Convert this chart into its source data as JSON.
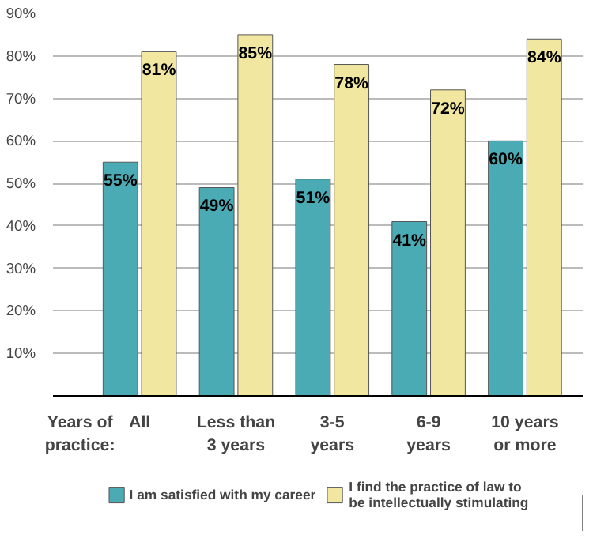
{
  "chart_data": {
    "type": "bar",
    "categories": [
      "All",
      "Less than\n3 years",
      "3-5\nyears",
      "6-9\nyears",
      "10 years\nor more"
    ],
    "series": [
      {
        "name": "I am satisfied with my career",
        "color": "#4aabb5",
        "values": [
          55,
          49,
          51,
          41,
          60
        ],
        "value_labels": [
          "55%",
          "49%",
          "51%",
          "41%",
          "60%"
        ]
      },
      {
        "name": "I find the practice of law to\nbe intellectually stimulating",
        "color": "#f2e7a0",
        "values": [
          81,
          85,
          78,
          72,
          84
        ],
        "value_labels": [
          "81%",
          "85%",
          "78%",
          "72%",
          "84%"
        ]
      }
    ],
    "ylim": [
      0,
      90
    ],
    "yticks": [
      {
        "value": 10,
        "label": "10%"
      },
      {
        "value": 20,
        "label": "20%"
      },
      {
        "value": 30,
        "label": "30%"
      },
      {
        "value": 40,
        "label": "40%"
      },
      {
        "value": 50,
        "label": "50%"
      },
      {
        "value": 60,
        "label": "60%"
      },
      {
        "value": 70,
        "label": "70%"
      },
      {
        "value": 80,
        "label": "80%"
      },
      {
        "value": 90,
        "label": "90%"
      }
    ],
    "grid": "y",
    "legend": "bottom",
    "annotations": [
      "Years of\npractice:"
    ]
  }
}
